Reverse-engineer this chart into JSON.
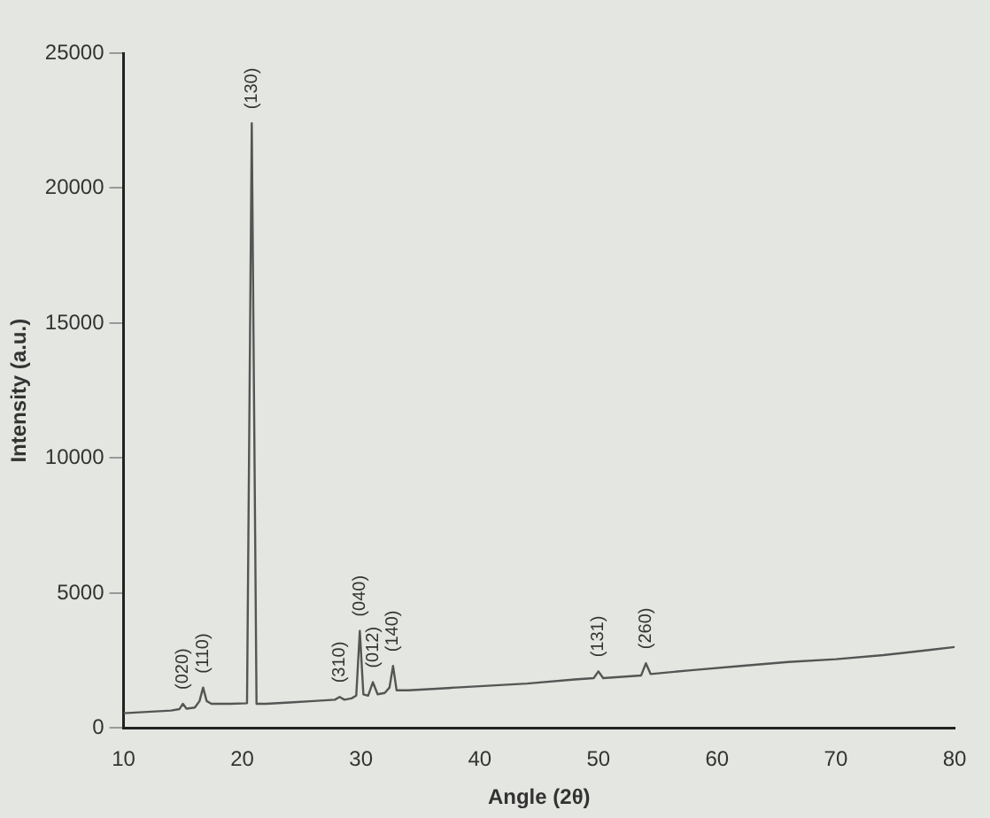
{
  "chart_data": {
    "type": "line",
    "xlabel": "Angle (2θ)",
    "ylabel": "Intensity (a.u.)",
    "x": [
      10,
      12,
      14,
      14.7,
      15,
      15.3,
      16,
      16.4,
      16.7,
      17,
      17.4,
      19,
      20.4,
      20.8,
      21.2,
      22,
      24,
      26,
      27.8,
      28.2,
      28.6,
      29.2,
      29.6,
      29.9,
      30.2,
      30.6,
      31,
      31.4,
      32,
      32.4,
      32.7,
      33,
      34,
      36,
      38,
      40,
      44,
      48,
      49.6,
      50,
      50.4,
      52,
      53.6,
      54,
      54.4,
      58,
      62,
      66,
      70,
      74,
      78,
      80
    ],
    "series": [
      {
        "color": "#555555",
        "values": [
          550,
          600,
          650,
          700,
          900,
          720,
          760,
          1000,
          1500,
          1000,
          900,
          900,
          920,
          22400,
          900,
          900,
          950,
          1000,
          1050,
          1150,
          1050,
          1100,
          1200,
          3600,
          1250,
          1200,
          1700,
          1250,
          1300,
          1500,
          2300,
          1400,
          1400,
          1450,
          1500,
          1550,
          1650,
          1800,
          1850,
          2100,
          1850,
          1900,
          1950,
          2400,
          2000,
          2150,
          2300,
          2450,
          2550,
          2700,
          2900,
          3000
        ]
      }
    ],
    "xlim": [
      10,
      80
    ],
    "xticks": [
      10,
      20,
      30,
      40,
      50,
      60,
      70,
      80
    ],
    "ylim": [
      0,
      25000
    ],
    "yticks": [
      0,
      5000,
      10000,
      15000,
      20000,
      25000
    ],
    "grid": false,
    "legend": false,
    "annotations": [
      {
        "text": "(020)",
        "x": 15,
        "y": 900
      },
      {
        "text": "(110)",
        "x": 16.7,
        "y": 1500
      },
      {
        "text": "(130)",
        "x": 20.8,
        "y": 22400
      },
      {
        "text": "(310)",
        "x": 28.2,
        "y": 1150
      },
      {
        "text": "(040)",
        "x": 29.9,
        "y": 3600
      },
      {
        "text": "(012)",
        "x": 31,
        "y": 1700
      },
      {
        "text": "(140)",
        "x": 32.7,
        "y": 2300
      },
      {
        "text": "(131)",
        "x": 50,
        "y": 2100
      },
      {
        "text": "(260)",
        "x": 54,
        "y": 2400
      }
    ]
  }
}
